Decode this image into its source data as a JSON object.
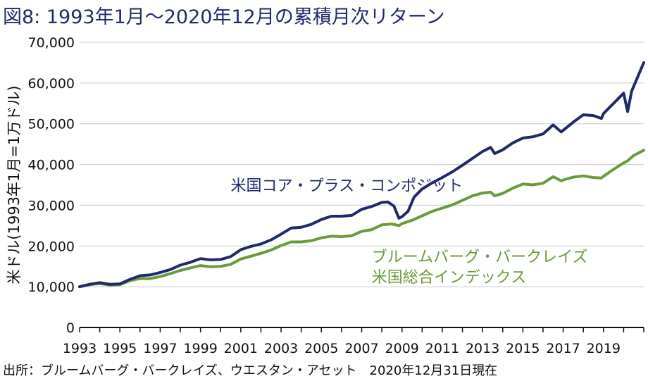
{
  "title": "図8: 1993年1月〜2020年12月の累積月次リターン",
  "source": "出所：ブルームバーグ・バークレイズ、ウエスタン・アセット　2020年12月31日現在",
  "colors": {
    "core_plus": "#1f2a6b",
    "aggregate": "#6a9a3a",
    "grid": "#c8c8c8",
    "axis": "#111111"
  },
  "chart_data": {
    "type": "line",
    "title": "図8: 1993年1月〜2020年12月の累積月次リターン",
    "ylabel": "米ドル(1993年1月=1万ドル)",
    "xlabel": "",
    "xlim": [
      1993,
      2021
    ],
    "ylim": [
      0,
      70000
    ],
    "yticks": [
      0,
      10000,
      20000,
      30000,
      40000,
      50000,
      60000,
      70000
    ],
    "ytick_labels": [
      "0",
      "10,000",
      "20,000",
      "30,000",
      "40,000",
      "50,000",
      "60,000",
      "70,000"
    ],
    "xticks": [
      1993,
      1995,
      1997,
      1999,
      2001,
      2003,
      2005,
      2007,
      2009,
      2011,
      2013,
      2015,
      2017,
      2019
    ],
    "xtick_labels": [
      "1993",
      "1995",
      "1997",
      "1999",
      "2001",
      "2003",
      "2005",
      "2007",
      "2009",
      "2011",
      "2013",
      "2015",
      "2017",
      "2019"
    ],
    "grid": "horizontal",
    "series": [
      {
        "name": "米国コア・プラス・コンポジット",
        "label_lines": [
          "米国コア・プラス・コンポジット"
        ],
        "color": "#1f2a6b",
        "points": [
          [
            1993,
            10000
          ],
          [
            1993.5,
            10600
          ],
          [
            1994,
            11000
          ],
          [
            1994.5,
            10600
          ],
          [
            1995,
            10700
          ],
          [
            1995.5,
            11800
          ],
          [
            1996,
            12700
          ],
          [
            1996.5,
            12900
          ],
          [
            1997,
            13500
          ],
          [
            1997.5,
            14200
          ],
          [
            1998,
            15300
          ],
          [
            1998.5,
            16000
          ],
          [
            1999,
            16900
          ],
          [
            1999.5,
            16600
          ],
          [
            2000,
            16700
          ],
          [
            2000.5,
            17400
          ],
          [
            2001,
            19100
          ],
          [
            2001.5,
            19900
          ],
          [
            2002,
            20500
          ],
          [
            2002.5,
            21500
          ],
          [
            2003,
            22900
          ],
          [
            2003.5,
            24400
          ],
          [
            2004,
            24600
          ],
          [
            2004.5,
            25300
          ],
          [
            2005,
            26500
          ],
          [
            2005.5,
            27300
          ],
          [
            2006,
            27300
          ],
          [
            2006.5,
            27500
          ],
          [
            2007,
            29000
          ],
          [
            2007.5,
            29700
          ],
          [
            2008,
            30700
          ],
          [
            2008.3,
            30800
          ],
          [
            2008.6,
            29800
          ],
          [
            2008.85,
            26800
          ],
          [
            2009,
            27200
          ],
          [
            2009.3,
            28500
          ],
          [
            2009.6,
            32000
          ],
          [
            2010,
            34000
          ],
          [
            2010.5,
            35500
          ],
          [
            2011,
            36800
          ],
          [
            2011.5,
            38200
          ],
          [
            2012,
            39800
          ],
          [
            2012.5,
            41500
          ],
          [
            2013,
            43200
          ],
          [
            2013.4,
            44200
          ],
          [
            2013.6,
            42700
          ],
          [
            2014,
            43600
          ],
          [
            2014.5,
            45300
          ],
          [
            2015,
            46500
          ],
          [
            2015.5,
            46800
          ],
          [
            2016,
            47500
          ],
          [
            2016.5,
            49700
          ],
          [
            2016.9,
            48000
          ],
          [
            2017,
            48400
          ],
          [
            2017.5,
            50400
          ],
          [
            2018,
            52200
          ],
          [
            2018.5,
            52000
          ],
          [
            2018.9,
            51300
          ],
          [
            2019,
            52500
          ],
          [
            2019.5,
            55000
          ],
          [
            2020,
            57500
          ],
          [
            2020.2,
            53000
          ],
          [
            2020.4,
            58000
          ],
          [
            2020.7,
            61500
          ],
          [
            2021,
            65000
          ]
        ]
      },
      {
        "name": "ブルームバーグ・バークレイズ米国総合インデックス",
        "label_lines": [
          "ブルームバーグ・バークレイズ",
          "米国総合インデックス"
        ],
        "color": "#6a9a3a",
        "points": [
          [
            1993,
            10000
          ],
          [
            1993.5,
            10500
          ],
          [
            1994,
            10800
          ],
          [
            1994.5,
            10400
          ],
          [
            1995,
            10500
          ],
          [
            1995.5,
            11500
          ],
          [
            1996,
            12000
          ],
          [
            1996.5,
            12000
          ],
          [
            1997,
            12500
          ],
          [
            1997.5,
            13200
          ],
          [
            1998,
            14000
          ],
          [
            1998.5,
            14600
          ],
          [
            1999,
            15200
          ],
          [
            1999.5,
            14900
          ],
          [
            2000,
            15000
          ],
          [
            2000.5,
            15500
          ],
          [
            2001,
            16800
          ],
          [
            2001.5,
            17500
          ],
          [
            2002,
            18200
          ],
          [
            2002.5,
            19000
          ],
          [
            2003,
            20100
          ],
          [
            2003.5,
            21000
          ],
          [
            2004,
            21000
          ],
          [
            2004.5,
            21300
          ],
          [
            2005,
            22000
          ],
          [
            2005.5,
            22400
          ],
          [
            2006,
            22300
          ],
          [
            2006.5,
            22500
          ],
          [
            2007,
            23600
          ],
          [
            2007.5,
            24000
          ],
          [
            2008,
            25200
          ],
          [
            2008.5,
            25400
          ],
          [
            2008.85,
            25000
          ],
          [
            2009,
            25500
          ],
          [
            2009.5,
            26300
          ],
          [
            2010,
            27400
          ],
          [
            2010.5,
            28500
          ],
          [
            2011,
            29300
          ],
          [
            2011.5,
            30100
          ],
          [
            2012,
            31200
          ],
          [
            2012.5,
            32300
          ],
          [
            2013,
            33000
          ],
          [
            2013.4,
            33200
          ],
          [
            2013.6,
            32300
          ],
          [
            2014,
            32900
          ],
          [
            2014.5,
            34200
          ],
          [
            2015,
            35200
          ],
          [
            2015.5,
            35000
          ],
          [
            2016,
            35400
          ],
          [
            2016.5,
            37000
          ],
          [
            2016.9,
            36000
          ],
          [
            2017,
            36200
          ],
          [
            2017.5,
            36900
          ],
          [
            2018,
            37200
          ],
          [
            2018.5,
            36800
          ],
          [
            2018.9,
            36700
          ],
          [
            2019,
            37100
          ],
          [
            2019.5,
            38800
          ],
          [
            2020,
            40400
          ],
          [
            2020.2,
            40900
          ],
          [
            2020.5,
            42200
          ],
          [
            2021,
            43500
          ]
        ]
      }
    ],
    "annotations": [
      "米国コア・プラス・コンポジット",
      "ブルームバーグ・バークレイズ",
      "米国総合インデックス"
    ]
  }
}
